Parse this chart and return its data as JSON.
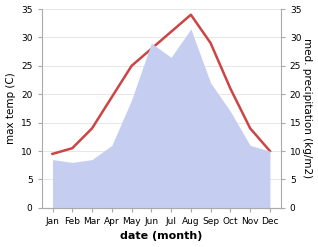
{
  "months": [
    "Jan",
    "Feb",
    "Mar",
    "Apr",
    "May",
    "Jun",
    "Jul",
    "Aug",
    "Sep",
    "Oct",
    "Nov",
    "Dec"
  ],
  "temperature": [
    9.5,
    10.5,
    14,
    19.5,
    25,
    28,
    31,
    34,
    29,
    21,
    14,
    10
  ],
  "precipitation": [
    8.5,
    8.0,
    8.5,
    11,
    19,
    29,
    26.5,
    31.5,
    22,
    17,
    11,
    10
  ],
  "temp_color": "#cc4444",
  "precip_color": "#c5cef0",
  "bg_color": "#ffffff",
  "left_ylabel": "max temp (C)",
  "right_ylabel": "med. precipitation (kg/m2)",
  "xlabel": "date (month)",
  "ylim": [
    0,
    35
  ],
  "yticks": [
    0,
    5,
    10,
    15,
    20,
    25,
    30,
    35
  ],
  "label_fontsize": 7.5,
  "tick_fontsize": 6.5,
  "xlabel_fontsize": 8,
  "linewidth": 1.8
}
